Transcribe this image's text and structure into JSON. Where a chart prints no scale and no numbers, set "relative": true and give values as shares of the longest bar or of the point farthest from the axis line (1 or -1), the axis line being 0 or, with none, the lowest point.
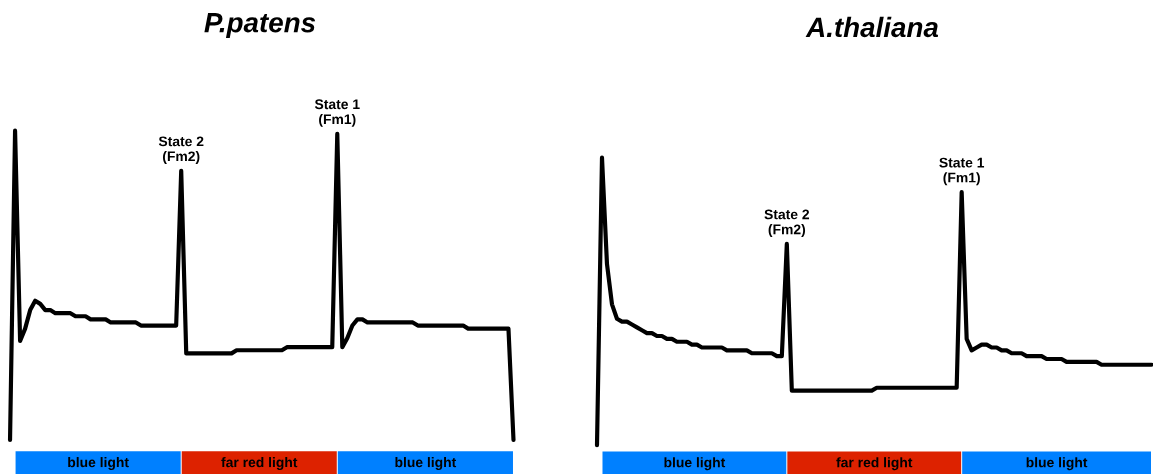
{
  "chart_data": [
    {
      "type": "line",
      "title": "P.patens",
      "relative": true,
      "color": "#000000",
      "categories": [
        null,
        null,
        null,
        null,
        null,
        null,
        null,
        null,
        null,
        null,
        null,
        null,
        null,
        null,
        null,
        null,
        null,
        null,
        null,
        null,
        null,
        null,
        null,
        null,
        null,
        null,
        null,
        null,
        null,
        null,
        null,
        null,
        null,
        null,
        null,
        null,
        null,
        null,
        null,
        null,
        null,
        null,
        null,
        null,
        null,
        null,
        null,
        null,
        null,
        null,
        null,
        null,
        null,
        null,
        null,
        null,
        null,
        null,
        null,
        null,
        null,
        null,
        null,
        null,
        null,
        null,
        null,
        null,
        null,
        null,
        null,
        null,
        null,
        null,
        null,
        null,
        null,
        null,
        null,
        null,
        null,
        null,
        null,
        null,
        null,
        null,
        null,
        null,
        null,
        null,
        null,
        null,
        null,
        null,
        null,
        null,
        null,
        null,
        null,
        null,
        null
      ],
      "values": [
        0,
        1.0,
        0.32,
        0.36,
        0.42,
        0.45,
        0.44,
        0.42,
        0.42,
        0.41,
        0.41,
        0.41,
        0.41,
        0.4,
        0.4,
        0.4,
        0.39,
        0.39,
        0.39,
        0.39,
        0.38,
        0.38,
        0.38,
        0.38,
        0.38,
        0.38,
        0.37,
        0.37,
        0.37,
        0.37,
        0.37,
        0.37,
        0.37,
        0.37,
        0.87,
        0.28,
        0.28,
        0.28,
        0.28,
        0.28,
        0.28,
        0.28,
        0.28,
        0.28,
        0.28,
        0.29,
        0.29,
        0.29,
        0.29,
        0.29,
        0.29,
        0.29,
        0.29,
        0.29,
        0.29,
        0.3,
        0.3,
        0.3,
        0.3,
        0.3,
        0.3,
        0.3,
        0.3,
        0.3,
        0.3,
        0.99,
        0.3,
        0.33,
        0.37,
        0.39,
        0.39,
        0.38,
        0.38,
        0.38,
        0.38,
        0.38,
        0.38,
        0.38,
        0.38,
        0.38,
        0.38,
        0.37,
        0.37,
        0.37,
        0.37,
        0.37,
        0.37,
        0.37,
        0.37,
        0.37,
        0.37,
        0.36,
        0.36,
        0.36,
        0.36,
        0.36,
        0.36,
        0.36,
        0.36,
        0.36,
        0
      ],
      "annotations": [
        "State 2\n(Fm2)",
        "State 1\n(Fm1)",
        "blue light",
        "far red light",
        "blue light"
      ]
    },
    {
      "type": "line",
      "title": "A.thaliana",
      "relative": true,
      "color": "#000000",
      "categories": [
        null,
        null,
        null,
        null,
        null,
        null,
        null,
        null,
        null,
        null,
        null,
        null,
        null,
        null,
        null,
        null,
        null,
        null,
        null,
        null,
        null,
        null,
        null,
        null,
        null,
        null,
        null,
        null,
        null,
        null,
        null,
        null,
        null,
        null,
        null,
        null,
        null,
        null,
        null,
        null,
        null,
        null,
        null,
        null,
        null,
        null,
        null,
        null,
        null,
        null,
        null,
        null,
        null,
        null,
        null,
        null,
        null,
        null,
        null,
        null,
        null,
        null,
        null,
        null,
        null,
        null,
        null,
        null,
        null,
        null,
        null,
        null,
        null,
        null,
        null,
        null,
        null,
        null,
        null,
        null,
        null,
        null,
        null,
        null,
        null,
        null,
        null,
        null,
        null,
        null,
        null,
        null,
        null,
        null,
        null,
        null,
        null,
        null,
        null,
        null,
        null,
        null,
        null,
        null,
        null,
        null,
        null,
        null,
        null,
        null,
        null,
        null
      ],
      "values": [
        0,
        1.0,
        0.63,
        0.49,
        0.44,
        0.43,
        0.43,
        0.42,
        0.41,
        0.4,
        0.39,
        0.39,
        0.38,
        0.38,
        0.37,
        0.37,
        0.36,
        0.36,
        0.36,
        0.35,
        0.35,
        0.34,
        0.34,
        0.34,
        0.34,
        0.34,
        0.33,
        0.33,
        0.33,
        0.33,
        0.33,
        0.32,
        0.32,
        0.32,
        0.32,
        0.32,
        0.31,
        0.31,
        0.7,
        0.19,
        0.19,
        0.19,
        0.19,
        0.19,
        0.19,
        0.19,
        0.19,
        0.19,
        0.19,
        0.19,
        0.19,
        0.19,
        0.19,
        0.19,
        0.19,
        0.19,
        0.2,
        0.2,
        0.2,
        0.2,
        0.2,
        0.2,
        0.2,
        0.2,
        0.2,
        0.2,
        0.2,
        0.2,
        0.2,
        0.2,
        0.2,
        0.2,
        0.2,
        0.88,
        0.37,
        0.33,
        0.34,
        0.35,
        0.35,
        0.34,
        0.34,
        0.33,
        0.33,
        0.32,
        0.32,
        0.32,
        0.31,
        0.31,
        0.31,
        0.31,
        0.3,
        0.3,
        0.3,
        0.3,
        0.29,
        0.29,
        0.29,
        0.29,
        0.29,
        0.29,
        0.29,
        0.28,
        0.28,
        0.28,
        0.28,
        0.28,
        0.28,
        0.28,
        0.28,
        0.28,
        0.28,
        0.28
      ],
      "annotations": [
        "State 2\n(Fm2)",
        "State 1\n(Fm1)",
        "blue light",
        "far red light",
        "blue light"
      ]
    }
  ]
}
